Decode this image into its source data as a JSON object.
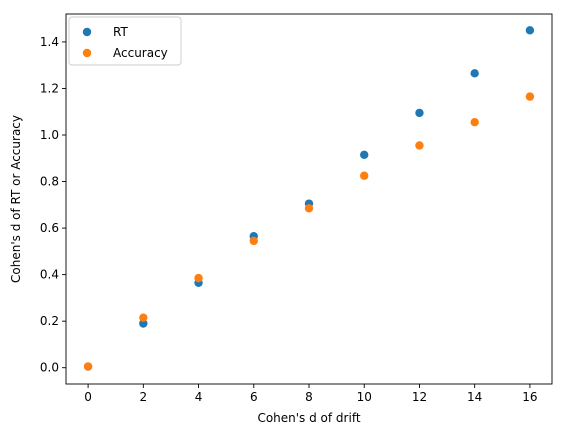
{
  "chart_data": {
    "type": "scatter",
    "title": "",
    "xlabel": "Cohen's d of drift",
    "ylabel": "Cohen's d of RT or Accuracy",
    "xlim": [
      -0.8,
      16.8
    ],
    "ylim": [
      -0.07,
      1.52
    ],
    "xticks": [
      0,
      2,
      4,
      6,
      8,
      10,
      12,
      14,
      16
    ],
    "xtick_labels": [
      "0",
      "2",
      "4",
      "6",
      "8",
      "10",
      "12",
      "14",
      "16"
    ],
    "yticks": [
      0.0,
      0.2,
      0.4,
      0.6,
      0.8,
      1.0,
      1.2,
      1.4
    ],
    "ytick_labels": [
      "0.0",
      "0.2",
      "0.4",
      "0.6",
      "0.8",
      "1.0",
      "1.2",
      "1.4"
    ],
    "grid": false,
    "legend_position": "top-left",
    "x": [
      0,
      2,
      4,
      6,
      8,
      10,
      12,
      14,
      16
    ],
    "series": [
      {
        "name": "RT",
        "color": "#1f77b4",
        "values": [
          0.005,
          0.19,
          0.365,
          0.565,
          0.705,
          0.915,
          1.095,
          1.265,
          1.45
        ]
      },
      {
        "name": "Accuracy",
        "color": "#ff7f0e",
        "values": [
          0.005,
          0.215,
          0.385,
          0.545,
          0.685,
          0.825,
          0.955,
          1.055,
          1.165
        ]
      }
    ]
  }
}
